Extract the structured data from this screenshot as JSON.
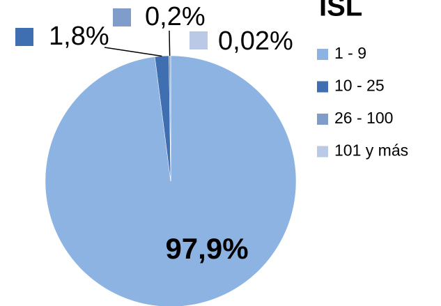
{
  "chart_data": {
    "type": "pie",
    "title": "ISL",
    "categories": [
      "1 - 9",
      "10 - 25",
      "26 - 100",
      "101 y más"
    ],
    "values": [
      97.9,
      1.8,
      0.2,
      0.02
    ],
    "value_labels": [
      "97,9%",
      "1,8%",
      "0,2%",
      "0,02%"
    ],
    "colors": [
      "#8db3e2",
      "#3f6fb0",
      "#7f9ccb",
      "#b9c9e6"
    ],
    "legend": "right"
  }
}
